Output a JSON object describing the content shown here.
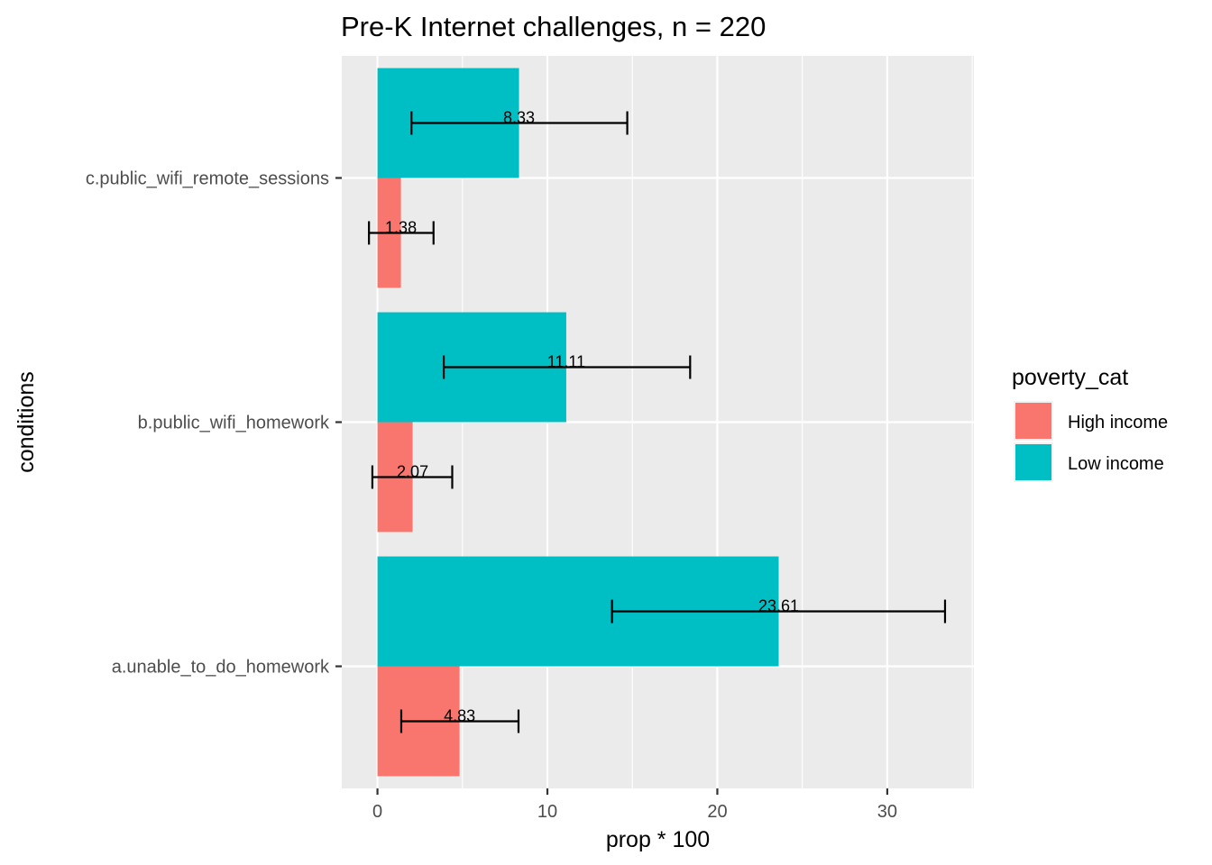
{
  "chart_data": {
    "type": "bar",
    "orientation": "horizontal",
    "title": "Pre-K Internet challenges, n = 220",
    "xlabel": "prop * 100",
    "ylabel": "conditions",
    "xlim": [
      -2.1,
      35.1
    ],
    "xticks": [
      0,
      10,
      20,
      30
    ],
    "categories": [
      "a.unable_to_do_homework",
      "b.public_wifi_homework",
      "c.public_wifi_remote_sessions"
    ],
    "legend": {
      "title": "poverty_cat",
      "position": "right"
    },
    "grid": true,
    "series": [
      {
        "name": "High income",
        "color": "#F8766D",
        "values": [
          4.83,
          2.07,
          1.38
        ],
        "labels": [
          "4.83",
          "2.07",
          "1.38"
        ],
        "error_low": [
          1.4,
          -0.3,
          -0.5
        ],
        "error_high": [
          8.3,
          4.4,
          3.3
        ]
      },
      {
        "name": "Low income",
        "color": "#00BFC4",
        "values": [
          23.61,
          11.11,
          8.33
        ],
        "labels": [
          "23.61",
          "11.11",
          "8.33"
        ],
        "error_low": [
          13.8,
          3.9,
          2.0
        ],
        "error_high": [
          33.4,
          18.4,
          14.7
        ]
      }
    ]
  }
}
